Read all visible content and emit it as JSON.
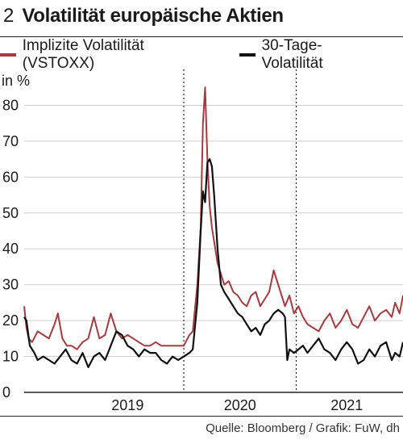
{
  "header": {
    "figure_number": "2",
    "title": "Volatilität europäische Aktien"
  },
  "source_text": "Quelle: Bloomberg / Grafik: FuW, dh",
  "colors": {
    "implied": "#a63a3f",
    "realized": "#111111",
    "grid": "#cfcfcf",
    "axis": "#222222"
  },
  "chart_data": {
    "type": "line",
    "title": "Volatilität europäische Aktien",
    "ylabel": "in %",
    "xlabel": "",
    "ylim": [
      0,
      90
    ],
    "yticks": [
      0,
      10,
      20,
      30,
      40,
      50,
      60,
      70,
      80
    ],
    "xlim": [
      2018.58,
      2021.95
    ],
    "year_labels": [
      {
        "label": "2019",
        "at": 2019.5
      },
      {
        "label": "2020",
        "at": 2020.5
      },
      {
        "label": "2021",
        "at": 2021.45
      }
    ],
    "year_dividers": [
      2020.0,
      2021.0
    ],
    "legend_position": "top",
    "series": [
      {
        "name": "Implizite Volatilität (VSTOXX)",
        "color": "#a63a3f",
        "x": [
          2018.58,
          2018.6,
          2018.62,
          2018.65,
          2018.7,
          2018.75,
          2018.8,
          2018.85,
          2018.88,
          2018.92,
          2018.96,
          2019.0,
          2019.05,
          2019.1,
          2019.15,
          2019.2,
          2019.25,
          2019.3,
          2019.35,
          2019.4,
          2019.45,
          2019.5,
          2019.55,
          2019.6,
          2019.65,
          2019.7,
          2019.75,
          2019.8,
          2019.85,
          2019.9,
          2019.95,
          2020.0,
          2020.05,
          2020.08,
          2020.12,
          2020.15,
          2020.17,
          2020.19,
          2020.21,
          2020.23,
          2020.25,
          2020.27,
          2020.3,
          2020.33,
          2020.36,
          2020.4,
          2020.44,
          2020.48,
          2020.52,
          2020.56,
          2020.6,
          2020.64,
          2020.68,
          2020.72,
          2020.76,
          2020.8,
          2020.84,
          2020.88,
          2020.9,
          2020.94,
          2020.98,
          2021.02,
          2021.06,
          2021.1,
          2021.15,
          2021.2,
          2021.25,
          2021.3,
          2021.35,
          2021.4,
          2021.45,
          2021.5,
          2021.55,
          2021.6,
          2021.65,
          2021.7,
          2021.75,
          2021.8,
          2021.85,
          2021.88,
          2021.92,
          2021.95
        ],
        "y": [
          24,
          18,
          15,
          14,
          17,
          16,
          15,
          19,
          22,
          15,
          13,
          13,
          12,
          14,
          15,
          21,
          15,
          16,
          22,
          17,
          15,
          16,
          15,
          14,
          13,
          13,
          14,
          13,
          13,
          13,
          13,
          13,
          16,
          17,
          30,
          46,
          75,
          85,
          65,
          52,
          46,
          42,
          36,
          33,
          30,
          31,
          28,
          27,
          25,
          24,
          27,
          28,
          24,
          26,
          28,
          34,
          30,
          26,
          24,
          27,
          22,
          24,
          21,
          19,
          18,
          17,
          20,
          22,
          18,
          20,
          23,
          19,
          18,
          21,
          24,
          20,
          22,
          23,
          21,
          25,
          22,
          27
        ]
      },
      {
        "name": "30-Tage-Volatilität",
        "color": "#111111",
        "x": [
          2018.58,
          2018.6,
          2018.63,
          2018.67,
          2018.7,
          2018.75,
          2018.8,
          2018.85,
          2018.9,
          2018.95,
          2019.0,
          2019.05,
          2019.1,
          2019.15,
          2019.2,
          2019.25,
          2019.3,
          2019.35,
          2019.4,
          2019.45,
          2019.5,
          2019.55,
          2019.6,
          2019.65,
          2019.7,
          2019.75,
          2019.8,
          2019.85,
          2019.9,
          2019.95,
          2020.0,
          2020.05,
          2020.08,
          2020.12,
          2020.15,
          2020.17,
          2020.19,
          2020.21,
          2020.23,
          2020.25,
          2020.27,
          2020.3,
          2020.33,
          2020.36,
          2020.4,
          2020.44,
          2020.48,
          2020.52,
          2020.56,
          2020.6,
          2020.64,
          2020.68,
          2020.72,
          2020.76,
          2020.8,
          2020.84,
          2020.88,
          2020.9,
          2020.92,
          2020.94,
          2020.98,
          2021.02,
          2021.06,
          2021.1,
          2021.15,
          2021.2,
          2021.25,
          2021.3,
          2021.35,
          2021.4,
          2021.45,
          2021.5,
          2021.55,
          2021.6,
          2021.65,
          2021.7,
          2021.75,
          2021.8,
          2021.85,
          2021.88,
          2021.92,
          2021.95
        ],
        "y": [
          21,
          20,
          13,
          11,
          9,
          10,
          9,
          8,
          10,
          12,
          9,
          8,
          11,
          7,
          10,
          11,
          9,
          13,
          17,
          16,
          13,
          12,
          10,
          12,
          11,
          11,
          9,
          8,
          10,
          9,
          10,
          11,
          12,
          25,
          45,
          56,
          53,
          64,
          65,
          63,
          55,
          40,
          30,
          28,
          26,
          24,
          22,
          21,
          19,
          17,
          18,
          16,
          19,
          20,
          22,
          23,
          22,
          21,
          9,
          12,
          11,
          12,
          13,
          11,
          13,
          15,
          12,
          11,
          9,
          12,
          14,
          12,
          8,
          9,
          12,
          10,
          13,
          14,
          9,
          11,
          10,
          14
        ]
      }
    ]
  }
}
